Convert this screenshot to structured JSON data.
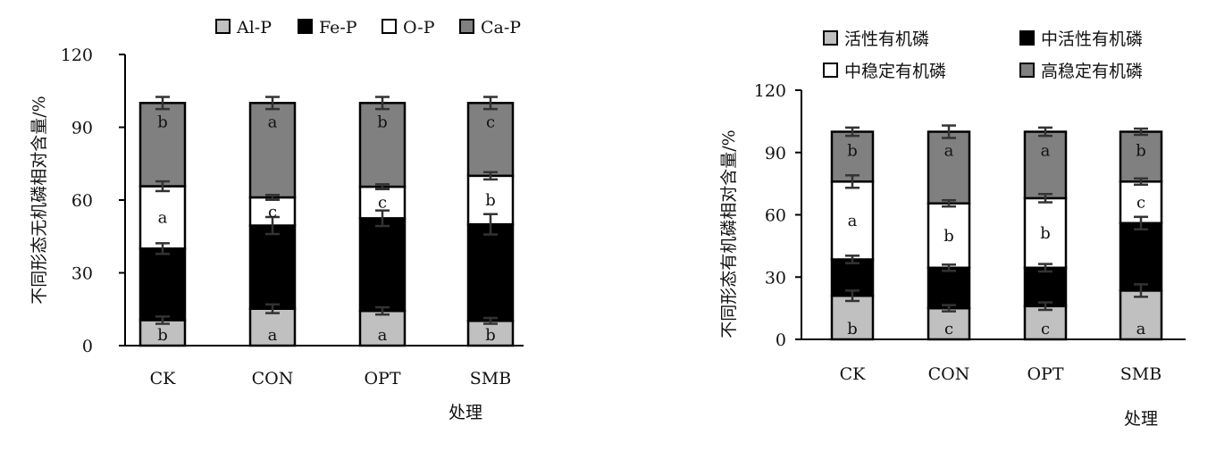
{
  "colors": {
    "light_gray": "#c0c0c0",
    "black": "#000000",
    "white": "#ffffff",
    "dark_gray": "#808080"
  },
  "chart_data": [
    {
      "type": "bar",
      "stacked": true,
      "categories": [
        "CK",
        "CON",
        "OPT",
        "SMB"
      ],
      "series": [
        {
          "name": "Al-P",
          "color": "#c0c0c0",
          "values": [
            10.5,
            15.2,
            14.3,
            10.2
          ],
          "errors": [
            1.5,
            1.8,
            1.5,
            1.2
          ],
          "letters": [
            "b",
            "a",
            "a",
            "b"
          ]
        },
        {
          "name": "Fe-P",
          "color": "#000000",
          "values": [
            29.5,
            34.3,
            38.2,
            39.8
          ],
          "errors": [
            2.2,
            3.5,
            3.2,
            4.2
          ],
          "letters": [
            "",
            "",
            "",
            ""
          ]
        },
        {
          "name": "O-P",
          "color": "#ffffff",
          "values": [
            25.7,
            11.6,
            13.0,
            20.0
          ],
          "errors": [
            2.0,
            1.0,
            1.0,
            1.5
          ],
          "letters": [
            "a",
            "c",
            "c",
            "b"
          ]
        },
        {
          "name": "Ca-P",
          "color": "#808080",
          "values": [
            34.3,
            38.9,
            34.5,
            30.0
          ],
          "errors": [
            2.5,
            2.5,
            2.5,
            2.5
          ],
          "letters": [
            "b",
            "a",
            "b",
            "c"
          ]
        }
      ],
      "ylabel": "不同形态无机磷相对含量/%",
      "xlabel": "处理",
      "ylim": [
        0,
        120
      ],
      "yticks": [
        0,
        30,
        60,
        90,
        120
      ],
      "legend_position": "top",
      "grid": false
    },
    {
      "type": "bar",
      "stacked": true,
      "categories": [
        "CK",
        "CON",
        "OPT",
        "SMB"
      ],
      "series": [
        {
          "name": "活性有机磷",
          "color": "#c0c0c0",
          "values": [
            21.0,
            15.0,
            16.0,
            23.5
          ],
          "errors": [
            2.5,
            1.5,
            1.8,
            3.0
          ],
          "letters": [
            "b",
            "c",
            "c",
            "a"
          ]
        },
        {
          "name": "中活性有机磷",
          "color": "#000000",
          "values": [
            17.5,
            19.5,
            18.5,
            32.5
          ],
          "errors": [
            1.8,
            1.5,
            1.8,
            3.0
          ],
          "letters": [
            "",
            "",
            "",
            ""
          ]
        },
        {
          "name": "中稳定有机磷",
          "color": "#ffffff",
          "values": [
            37.5,
            31.0,
            33.5,
            20.0
          ],
          "errors": [
            3.0,
            1.5,
            2.0,
            1.5
          ],
          "letters": [
            "a",
            "b",
            "b",
            "c"
          ]
        },
        {
          "name": "高稳定有机磷",
          "color": "#808080",
          "values": [
            24.0,
            34.5,
            32.0,
            24.0
          ],
          "errors": [
            2.0,
            3.0,
            2.0,
            1.5
          ],
          "letters": [
            "b",
            "a",
            "a",
            "b"
          ]
        }
      ],
      "ylabel": "不同形态有机磷相对含量/%",
      "xlabel": "处理",
      "ylim": [
        0,
        120
      ],
      "yticks": [
        0,
        30,
        60,
        90,
        120
      ],
      "legend_position": "top",
      "grid": false
    }
  ]
}
